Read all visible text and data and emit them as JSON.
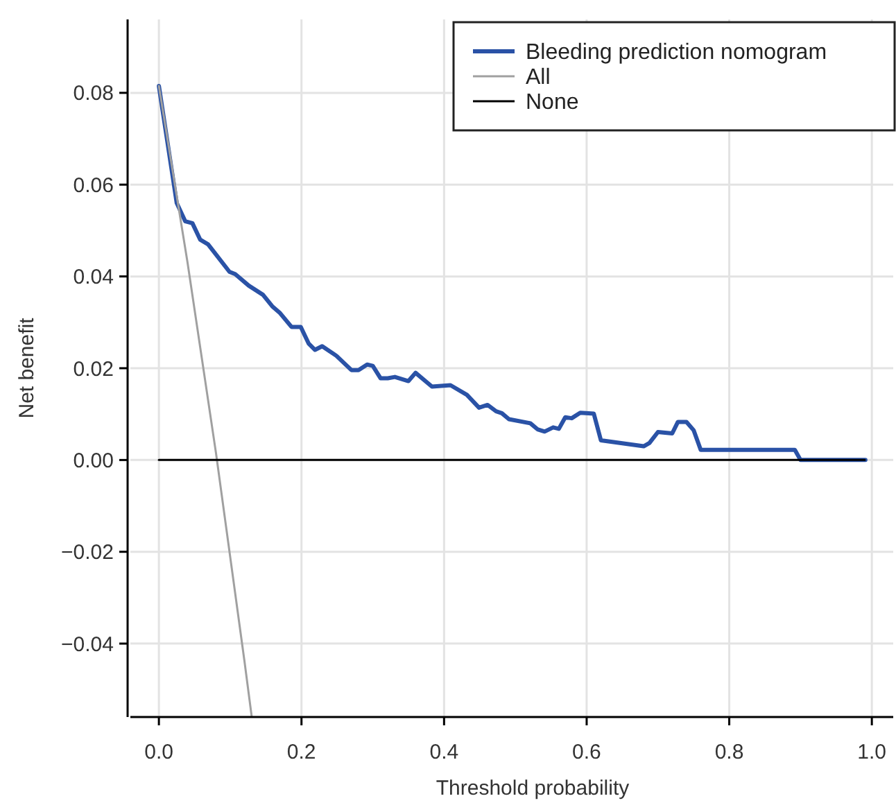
{
  "chart_data": {
    "type": "line",
    "xlabel": "Threshold probability",
    "ylabel": "Net benefit",
    "xlim": [
      -0.04,
      1.03
    ],
    "ylim": [
      -0.056,
      0.096
    ],
    "xticks": [
      {
        "value": 0,
        "label": "0.0"
      },
      {
        "value": 0.2,
        "label": "0.2"
      },
      {
        "value": 0.4,
        "label": "0.4"
      },
      {
        "value": 0.6,
        "label": "0.6"
      },
      {
        "value": 0.8,
        "label": "0.8"
      },
      {
        "value": 1,
        "label": "1.0"
      }
    ],
    "yticks": [
      {
        "value": -0.04,
        "label": "−0.04"
      },
      {
        "value": -0.02,
        "label": "−0.02"
      },
      {
        "value": 0,
        "label": "0.00"
      },
      {
        "value": 0.02,
        "label": "0.02"
      },
      {
        "value": 0.04,
        "label": "0.04"
      },
      {
        "value": 0.06,
        "label": "0.06"
      },
      {
        "value": 0.08,
        "label": "0.08"
      }
    ],
    "grid": true,
    "legend": "top right",
    "marker": "none",
    "line_style": "solid",
    "series": [
      {
        "name": "Bleeding prediction nomogram",
        "color": "#2a52a6",
        "x": [
          0,
          0.025,
          0.037,
          0.047,
          0.058,
          0.069,
          0.099,
          0.107,
          0.126,
          0.146,
          0.159,
          0.17,
          0.186,
          0.199,
          0.21,
          0.219,
          0.229,
          0.249,
          0.27,
          0.28,
          0.292,
          0.3,
          0.311,
          0.321,
          0.331,
          0.35,
          0.36,
          0.383,
          0.409,
          0.432,
          0.449,
          0.461,
          0.473,
          0.481,
          0.491,
          0.521,
          0.531,
          0.541,
          0.553,
          0.561,
          0.57,
          0.579,
          0.591,
          0.61,
          0.62,
          0.68,
          0.688,
          0.7,
          0.72,
          0.728,
          0.74,
          0.75,
          0.76,
          0.892,
          0.9,
          0.991
        ],
        "values": [
          0.0815,
          0.056,
          0.052,
          0.0516,
          0.048,
          0.047,
          0.041,
          0.0405,
          0.038,
          0.036,
          0.0335,
          0.032,
          0.029,
          0.029,
          0.0254,
          0.024,
          0.0248,
          0.0227,
          0.0196,
          0.0196,
          0.0208,
          0.0205,
          0.0178,
          0.0178,
          0.0181,
          0.0172,
          0.019,
          0.016,
          0.0163,
          0.0142,
          0.0114,
          0.012,
          0.0106,
          0.0102,
          0.0089,
          0.008,
          0.0067,
          0.0062,
          0.0071,
          0.0068,
          0.0093,
          0.0091,
          0.0103,
          0.0101,
          0.0043,
          0.003,
          0.0037,
          0.0061,
          0.0058,
          0.0083,
          0.0083,
          0.0065,
          0.0022,
          0.0022,
          0,
          0
        ]
      },
      {
        "name": "All",
        "color": "#a0a0a0",
        "x": [
          0,
          0.04,
          0.08,
          0.12,
          0.13
        ],
        "values": [
          0.0815,
          0.0432,
          0.0016,
          -0.0438,
          -0.0557
        ]
      },
      {
        "name": "None",
        "color": "#000000",
        "x": [
          0,
          0.99
        ],
        "values": [
          0,
          0
        ]
      }
    ]
  }
}
